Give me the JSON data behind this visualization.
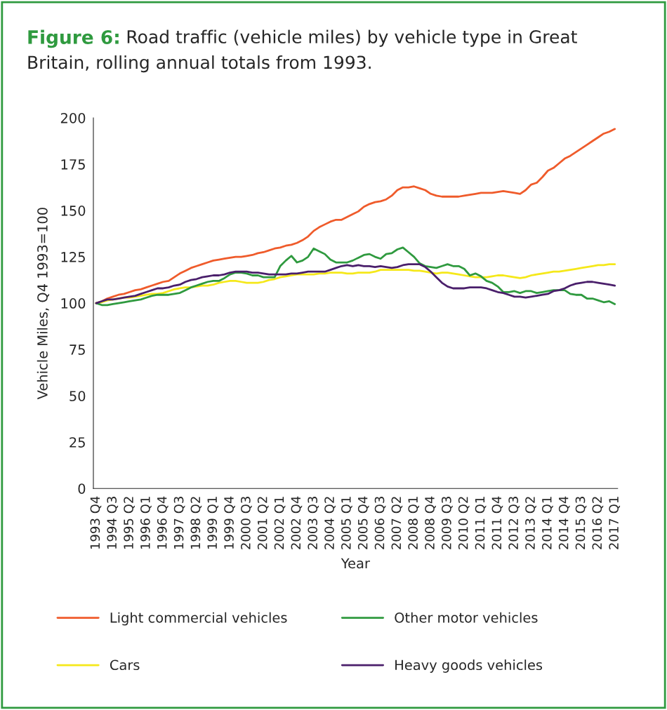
{
  "chart_data": {
    "type": "line",
    "title": "Figure 6: Road traffic (vehicle miles) by vehicle type in Great Britain, rolling annual totals from 1993.",
    "xlabel": "Year",
    "ylabel": "Vehicle Miles, Q4 1993=100",
    "categories": [
      "1993 Q4",
      null,
      null,
      "1994 Q3",
      null,
      null,
      "1995 Q2",
      null,
      null,
      "1996 Q1",
      null,
      null,
      "1996 Q4",
      null,
      null,
      "1997 Q3",
      null,
      null,
      "1998 Q2",
      null,
      null,
      "1999 Q1",
      null,
      null,
      "1999 Q4",
      null,
      null,
      "2000 Q3",
      null,
      null,
      "2001 Q2",
      null,
      null,
      "2002 Q1",
      null,
      null,
      "2002 Q4",
      null,
      null,
      "2003 Q3",
      null,
      null,
      "2004 Q2",
      null,
      null,
      "2005 Q1",
      null,
      null,
      "2005 Q4",
      null,
      null,
      "2006 Q3",
      null,
      null,
      "2007 Q2",
      null,
      null,
      "2008 Q1",
      null,
      null,
      "2008 Q4",
      null,
      null,
      "2009 Q3",
      null,
      null,
      "2010 Q2",
      null,
      null,
      "2011 Q1",
      null,
      null,
      "2011 Q4",
      null,
      null,
      "2012 Q3",
      null,
      null,
      "2013 Q2",
      null,
      null,
      "2014 Q1",
      null,
      null,
      "2014 Q4",
      null,
      null,
      "2015 Q3",
      null,
      null,
      "2016 Q2",
      null,
      null,
      "2017 Q1"
    ],
    "ylim": [
      0,
      200
    ],
    "yticks": [
      0,
      25,
      50,
      75,
      100,
      125,
      150,
      175,
      200
    ],
    "grid": false,
    "legend": "bottom",
    "marker": "none",
    "line_style": "solid",
    "series": [
      {
        "name": "Light commercial vehicles",
        "color": "#ef5b2b",
        "values": [
          100,
          101,
          102.5,
          103.5,
          104.5,
          105,
          106,
          107,
          107.5,
          108.5,
          109.5,
          110.5,
          111.5,
          112,
          114,
          116,
          117.5,
          119,
          120,
          121,
          122,
          123,
          123.5,
          124,
          124.5,
          125,
          125,
          125.5,
          126,
          127,
          127.5,
          128.5,
          129.5,
          130,
          131,
          131.5,
          132.5,
          134,
          136,
          139,
          141,
          142.5,
          144,
          145,
          145,
          146.5,
          148,
          149.5,
          152,
          153.5,
          154.5,
          155,
          156,
          158,
          161,
          162.5,
          162.5,
          163,
          162,
          161,
          159,
          158,
          157.5,
          157.5,
          157.5,
          157.5,
          158,
          158.5,
          159,
          159.5,
          159.5,
          159.5,
          160,
          160.5,
          160,
          159.5,
          159,
          161,
          164,
          165,
          168,
          171.5,
          173,
          175.5,
          178,
          179.5,
          181.5,
          183.5,
          185.5,
          187.5,
          189.5,
          191.5,
          192.5,
          194
        ]
      },
      {
        "name": "Cars",
        "color": "#f5e81a",
        "values": [
          100,
          100.5,
          101.5,
          102,
          102.5,
          103,
          103,
          103.5,
          104,
          104.5,
          105,
          105,
          105.5,
          106.5,
          107.5,
          108,
          108.5,
          108.5,
          109,
          109.5,
          109.5,
          110,
          111,
          111.5,
          112,
          112,
          111.5,
          111,
          111,
          111,
          111.5,
          112.5,
          113,
          114,
          114.5,
          115,
          115.5,
          115.5,
          115.5,
          115.5,
          116,
          116,
          116.5,
          116.5,
          116.5,
          116,
          116,
          116.5,
          116.5,
          116.5,
          117,
          118,
          118,
          118,
          118,
          118,
          118,
          117.5,
          117.5,
          117,
          116.5,
          116,
          116.5,
          116.5,
          116,
          115.5,
          115,
          114.5,
          114,
          114,
          114,
          114.5,
          115,
          115,
          114.5,
          114,
          113.5,
          114,
          115,
          115.5,
          116,
          116.5,
          117,
          117,
          117.5,
          118,
          118.5,
          119,
          119.5,
          120,
          120.5,
          120.5,
          121,
          121
        ]
      },
      {
        "name": "Other motor vehicles",
        "color": "#2f9a3f",
        "values": [
          100,
          99,
          99,
          99.5,
          100,
          100.5,
          101,
          101.5,
          102,
          103,
          104,
          104.5,
          104.5,
          104.5,
          105,
          105.5,
          107,
          108.5,
          109.5,
          110.5,
          111.5,
          112,
          112,
          113.5,
          115.5,
          116.5,
          116.5,
          116,
          115,
          115,
          114,
          114,
          114,
          120,
          123,
          125.5,
          122,
          123,
          125,
          129.5,
          128,
          126.5,
          123.5,
          122,
          122,
          122,
          123,
          124.5,
          126,
          126.5,
          125,
          124,
          126.5,
          127,
          129,
          130,
          127.5,
          125,
          121.5,
          120,
          119.5,
          119,
          120,
          121,
          120,
          120,
          118.5,
          115,
          116,
          114.5,
          112,
          111,
          109,
          106,
          106,
          106.5,
          105.5,
          106.5,
          106.5,
          105.5,
          106,
          106.5,
          107,
          107,
          107,
          105,
          104.5,
          104.5,
          102.5,
          102.5,
          101.5,
          100.5,
          101,
          99.5
        ]
      },
      {
        "name": "Heavy goods vehicles",
        "color": "#4a1f6b",
        "values": [
          100,
          101,
          102,
          102,
          102.5,
          103,
          103.5,
          104,
          105,
          106,
          107,
          108,
          108,
          108.5,
          109.5,
          110,
          111.5,
          112.5,
          113,
          114,
          114.5,
          115,
          115,
          115.5,
          116.5,
          117,
          117,
          117,
          116.5,
          116.5,
          116,
          115.5,
          115.5,
          115.5,
          115.5,
          116,
          116,
          116.5,
          117,
          117,
          117,
          117,
          118,
          119,
          120,
          120.5,
          120,
          120.5,
          120,
          120,
          119.5,
          120,
          119.5,
          119,
          119.5,
          120.5,
          121,
          121,
          121,
          119.5,
          117,
          114,
          111,
          109,
          108,
          108,
          108,
          108.5,
          108.5,
          108.5,
          108,
          107,
          106,
          105.5,
          104.5,
          103.5,
          103.5,
          103,
          103.5,
          104,
          104.5,
          105,
          106.5,
          107,
          108,
          109.5,
          110.5,
          111,
          111.5,
          111.5,
          111,
          110.5,
          110,
          109.5
        ]
      }
    ]
  }
}
